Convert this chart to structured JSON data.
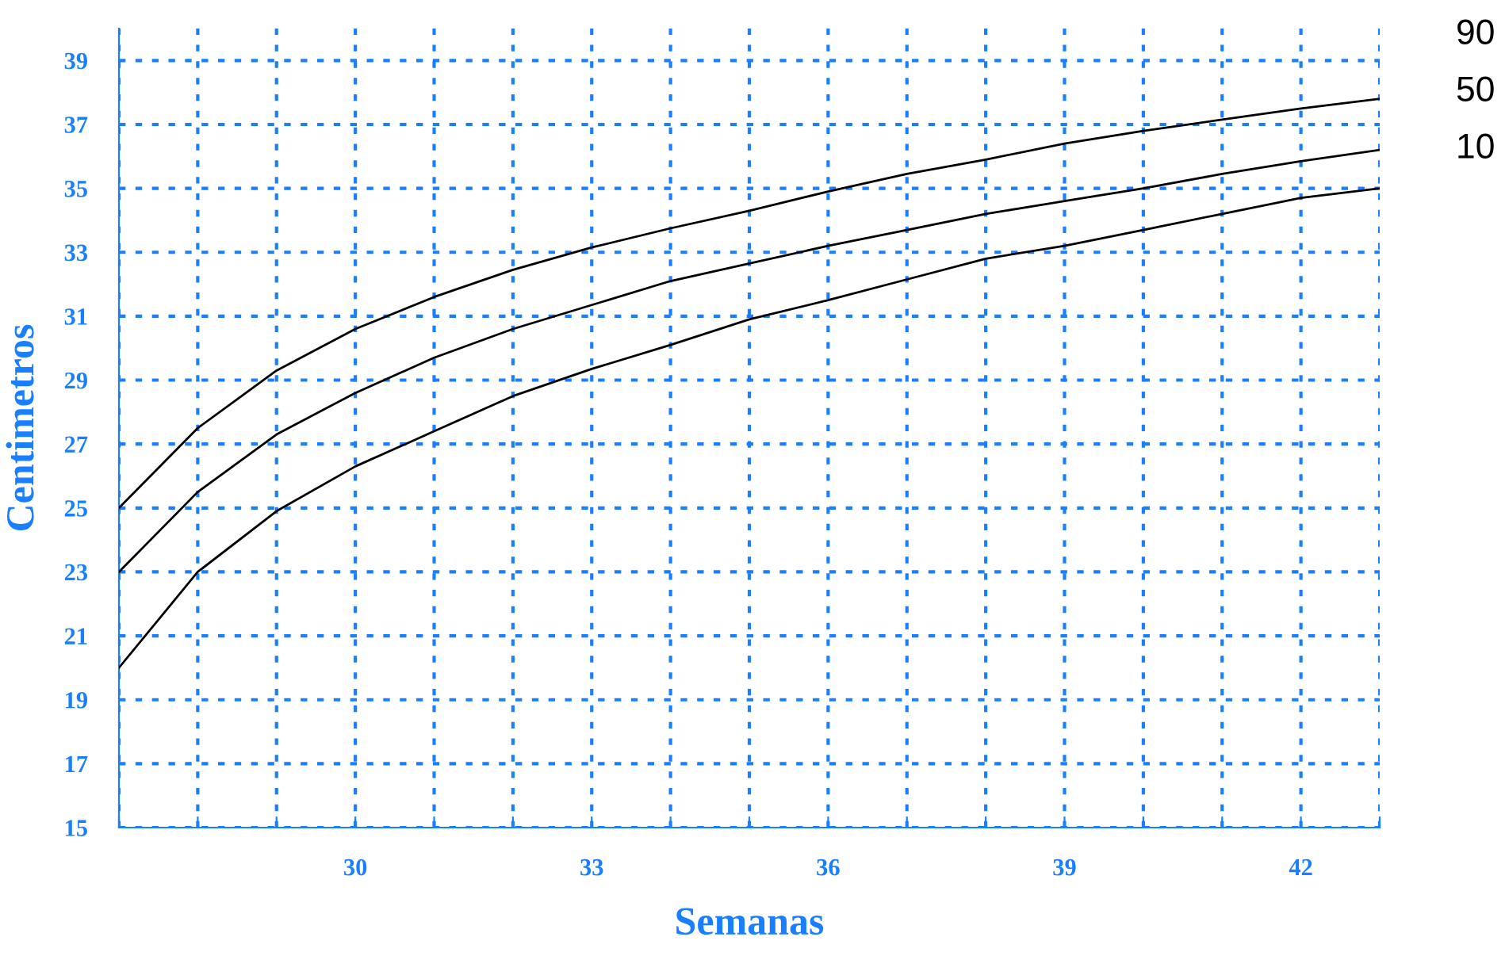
{
  "chart_data": {
    "type": "line",
    "xlabel": "Semanas",
    "ylabel": "Centimetros",
    "x": [
      27,
      28,
      29,
      30,
      31,
      32,
      33,
      34,
      35,
      36,
      37,
      38,
      39,
      40,
      41,
      42,
      43
    ],
    "series": [
      {
        "name": "90",
        "color": "#000000",
        "values": [
          25,
          27.5,
          29.3,
          30.6,
          31.6,
          32.45,
          33.15,
          33.75,
          34.3,
          34.9,
          35.45,
          35.9,
          36.4,
          36.8,
          37.15,
          37.5,
          37.8
        ]
      },
      {
        "name": "50",
        "color": "#000000",
        "values": [
          23,
          25.5,
          27.3,
          28.6,
          29.7,
          30.6,
          31.35,
          32.1,
          32.65,
          33.2,
          33.7,
          34.2,
          34.6,
          35.0,
          35.45,
          35.85,
          36.2
        ]
      },
      {
        "name": "10",
        "color": "#000000",
        "values": [
          20,
          23.0,
          24.9,
          26.3,
          27.4,
          28.5,
          29.35,
          30.1,
          30.9,
          31.5,
          32.15,
          32.8,
          33.2,
          33.7,
          34.2,
          34.7,
          35.0
        ]
      }
    ],
    "xlim": [
      27,
      43
    ],
    "ylim": [
      15,
      40
    ],
    "xticks": [
      {
        "value": 27,
        "label": null
      },
      {
        "value": 28,
        "label": null
      },
      {
        "value": 29,
        "label": null
      },
      30,
      {
        "value": 31,
        "label": null
      },
      {
        "value": 32,
        "label": null
      },
      33,
      {
        "value": 34,
        "label": null
      },
      {
        "value": 35,
        "label": null
      },
      36,
      {
        "value": 37,
        "label": null
      },
      {
        "value": 38,
        "label": null
      },
      39,
      {
        "value": 40,
        "label": null
      },
      {
        "value": 41,
        "label": null
      },
      42,
      {
        "value": 43,
        "label": null
      }
    ],
    "yticks": [
      15,
      17,
      19,
      21,
      23,
      25,
      27,
      29,
      31,
      33,
      35,
      37,
      39
    ],
    "grid": true,
    "legend": false,
    "marker": "none",
    "line_style": "solid"
  }
}
